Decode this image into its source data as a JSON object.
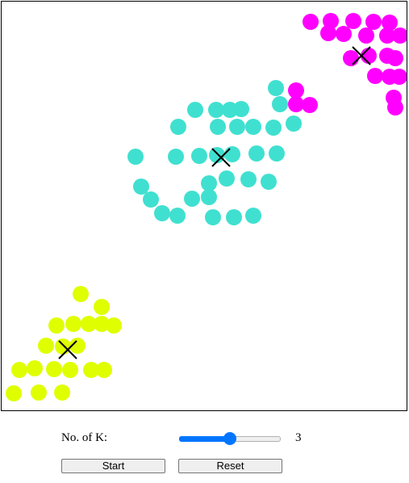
{
  "controls": {
    "k_label": "No. of K:",
    "k_value": "3",
    "k_min": 1,
    "k_max": 5,
    "start_label": "Start",
    "reset_label": "Reset"
  },
  "colors": {
    "cyan": "#40e0d0",
    "magenta": "#ff00ff",
    "yellow": "#dfff00",
    "centroid": "#000000",
    "slider": "#0075ff"
  },
  "chart_data": {
    "type": "scatter",
    "xlim": [
      0,
      502
    ],
    "ylim": [
      0,
      506
    ],
    "series": [
      {
        "color": "#ff00ff",
        "points": [
          [
            383,
            25
          ],
          [
            408,
            24
          ],
          [
            436,
            24
          ],
          [
            461,
            25
          ],
          [
            481,
            26
          ],
          [
            405,
            39
          ],
          [
            424,
            40
          ],
          [
            452,
            42
          ],
          [
            478,
            42
          ],
          [
            494,
            42
          ],
          [
            433,
            70
          ],
          [
            455,
            67
          ],
          [
            478,
            67
          ],
          [
            488,
            70
          ],
          [
            463,
            92
          ],
          [
            481,
            93
          ],
          [
            493,
            93
          ],
          [
            365,
            110
          ],
          [
            365,
            127
          ],
          [
            382,
            128
          ],
          [
            486,
            119
          ],
          [
            488,
            131
          ]
        ]
      },
      {
        "color": "#40e0d0",
        "points": [
          [
            340,
            107
          ],
          [
            345,
            127
          ],
          [
            240,
            134
          ],
          [
            266,
            134
          ],
          [
            283,
            134
          ],
          [
            297,
            133
          ],
          [
            219,
            155
          ],
          [
            268,
            155
          ],
          [
            292,
            155
          ],
          [
            312,
            155
          ],
          [
            337,
            156
          ],
          [
            362,
            151
          ],
          [
            166,
            192
          ],
          [
            216,
            192
          ],
          [
            245,
            191
          ],
          [
            267,
            190
          ],
          [
            286,
            189
          ],
          [
            316,
            188
          ],
          [
            341,
            188
          ],
          [
            257,
            225
          ],
          [
            279,
            219
          ],
          [
            306,
            220
          ],
          [
            331,
            223
          ],
          [
            173,
            229
          ],
          [
            185,
            245
          ],
          [
            236,
            244
          ],
          [
            257,
            242
          ],
          [
            199,
            262
          ],
          [
            218,
            265
          ],
          [
            262,
            267
          ],
          [
            288,
            267
          ],
          [
            312,
            265
          ]
        ]
      },
      {
        "color": "#dfff00",
        "points": [
          [
            98,
            362
          ],
          [
            124,
            378
          ],
          [
            68,
            401
          ],
          [
            89,
            399
          ],
          [
            108,
            399
          ],
          [
            124,
            399
          ],
          [
            139,
            401
          ],
          [
            55,
            426
          ],
          [
            76,
            427
          ],
          [
            94,
            426
          ],
          [
            22,
            456
          ],
          [
            41,
            454
          ],
          [
            65,
            455
          ],
          [
            85,
            456
          ],
          [
            111,
            456
          ],
          [
            127,
            456
          ],
          [
            15,
            485
          ],
          [
            46,
            484
          ],
          [
            75,
            484
          ]
        ]
      }
    ],
    "centroids": [
      [
        446,
        67
      ],
      [
        272,
        193
      ],
      [
        82,
        431
      ]
    ]
  }
}
